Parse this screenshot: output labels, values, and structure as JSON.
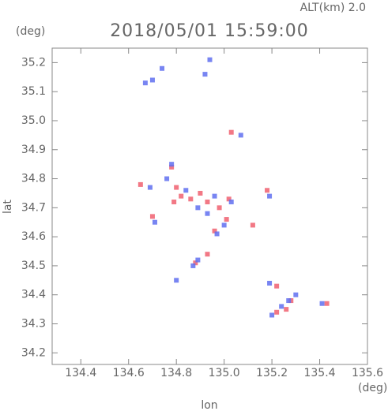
{
  "chart_data": {
    "type": "scatter",
    "title": "2018/05/01 15:59:00",
    "subtitle": "ALT(km) 2.0",
    "x_label": "lon",
    "y_label": "lat",
    "x_unit": "(deg)",
    "y_unit": "(deg)",
    "xlim": [
      134.28,
      135.6
    ],
    "ylim": [
      34.16,
      35.25
    ],
    "xticks": [
      134.4,
      134.6,
      134.8,
      {
        "value": 135,
        "label": "135.0"
      },
      135.2,
      135.4,
      135.6
    ],
    "yticks": [
      34.2,
      34.3,
      34.4,
      34.5,
      34.6,
      34.7,
      34.8,
      34.9,
      {
        "value": 35,
        "label": "35.0"
      },
      35.1,
      35.2
    ],
    "series": [
      {
        "color": "#f06070",
        "x": [
          135.03,
          134.65,
          134.78,
          134.8,
          134.82,
          134.79,
          134.86,
          134.9,
          134.93,
          134.98,
          135.01,
          134.96,
          135.02,
          135.12,
          135.18,
          134.7,
          134.93,
          134.88,
          135.22,
          135.28,
          135.26,
          135.43,
          135.22
        ],
        "y": [
          34.96,
          34.78,
          34.84,
          34.77,
          34.74,
          34.72,
          34.73,
          34.75,
          34.72,
          34.7,
          34.66,
          34.62,
          34.73,
          34.64,
          34.76,
          34.67,
          34.54,
          34.51,
          34.43,
          34.38,
          34.35,
          34.37,
          34.34
        ]
      },
      {
        "color": "#6070f0",
        "x": [
          134.7,
          134.74,
          134.67,
          135.07,
          134.69,
          134.78,
          134.76,
          134.84,
          134.89,
          134.93,
          134.96,
          135.0,
          134.97,
          135.03,
          135.19,
          134.71,
          134.8,
          134.89,
          134.87,
          135.27,
          135.3,
          135.2,
          135.24,
          135.41,
          135.19,
          134.94,
          134.92
        ],
        "y": [
          35.14,
          35.18,
          35.13,
          34.95,
          34.77,
          34.85,
          34.8,
          34.76,
          34.7,
          34.68,
          34.74,
          34.64,
          34.61,
          34.72,
          34.74,
          34.65,
          34.45,
          34.52,
          34.5,
          34.38,
          34.4,
          34.33,
          34.36,
          34.37,
          34.44,
          35.21,
          35.16
        ]
      }
    ]
  }
}
